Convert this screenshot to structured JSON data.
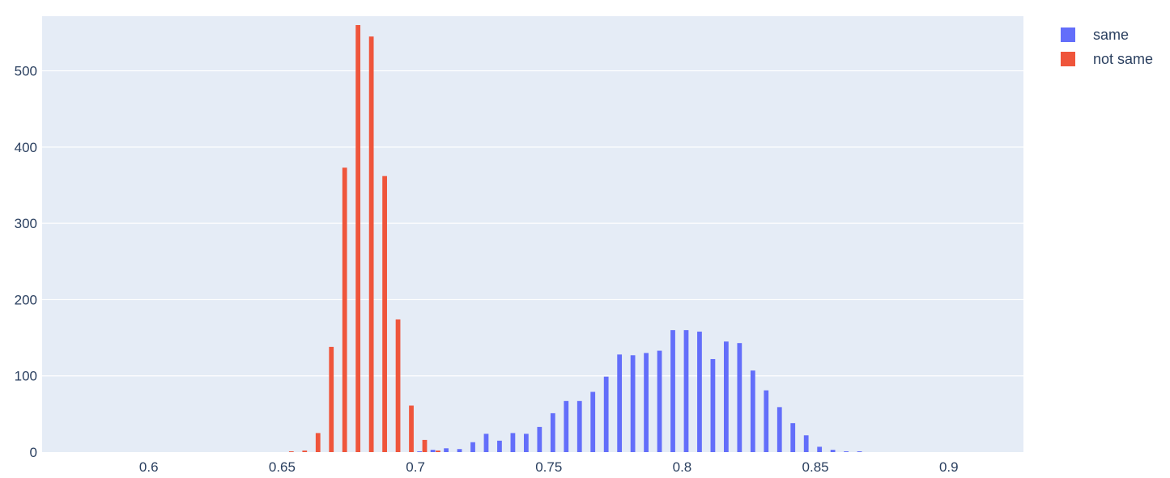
{
  "chart_data": {
    "type": "bar",
    "title": "",
    "xlabel": "",
    "ylabel": "",
    "xlim": [
      0.56,
      0.928
    ],
    "ylim": [
      0,
      560
    ],
    "x_ticks": [
      0.6,
      0.65,
      0.7,
      0.75,
      0.8,
      0.85,
      0.9
    ],
    "x_tick_labels": [
      "0.6",
      "0.65",
      "0.7",
      "0.75",
      "0.8",
      "0.85",
      "0.9"
    ],
    "y_ticks": [
      0,
      100,
      200,
      300,
      400,
      500
    ],
    "y_tick_labels": [
      "0",
      "100",
      "200",
      "300",
      "400",
      "500"
    ],
    "grid": true,
    "legend_position": "top-right",
    "series": [
      {
        "name": "same",
        "color": "#636efa",
        "x": [
          0.6975,
          0.7025,
          0.7075,
          0.7125,
          0.7175,
          0.7225,
          0.7275,
          0.7325,
          0.7375,
          0.7425,
          0.7475,
          0.7525,
          0.7575,
          0.7625,
          0.7675,
          0.7725,
          0.7775,
          0.7825,
          0.7875,
          0.7925,
          0.7975,
          0.8025,
          0.8075,
          0.8125,
          0.8175,
          0.8225,
          0.8275,
          0.8325,
          0.8375,
          0.8425,
          0.8475,
          0.8525,
          0.8575,
          0.8625,
          0.8675
        ],
        "values": [
          0,
          1,
          3,
          5,
          4,
          13,
          24,
          15,
          25,
          24,
          33,
          51,
          67,
          67,
          79,
          99,
          128,
          127,
          130,
          133,
          160,
          160,
          158,
          122,
          145,
          143,
          107,
          81,
          59,
          38,
          22,
          7,
          3,
          1,
          1
        ]
      },
      {
        "name": "not same",
        "color": "#ef553b",
        "x": [
          0.6525,
          0.6575,
          0.6625,
          0.6675,
          0.6725,
          0.6775,
          0.6825,
          0.6875,
          0.6925,
          0.6975,
          0.7025,
          0.7075
        ],
        "values": [
          1,
          2,
          25,
          138,
          373,
          560,
          545,
          362,
          174,
          61,
          16,
          2
        ]
      }
    ]
  }
}
